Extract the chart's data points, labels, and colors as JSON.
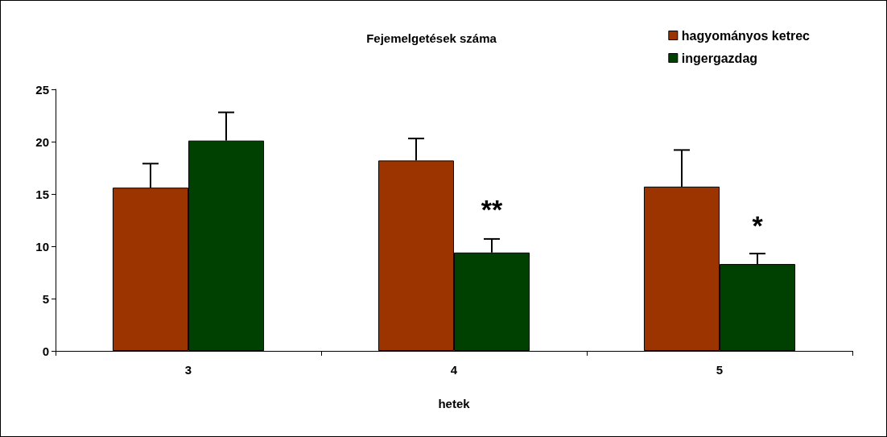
{
  "chart_data": {
    "type": "bar",
    "title": "Fejemelgetések száma",
    "xlabel": "hetek",
    "categories": [
      "3",
      "4",
      "5"
    ],
    "series": [
      {
        "name": "hagyományos ketrec",
        "color": "#9c3400",
        "values": [
          15.6,
          18.2,
          15.7
        ],
        "errors": [
          [
            15.6,
            17.9
          ],
          [
            18.2,
            20.3
          ],
          [
            15.7,
            19.2
          ]
        ]
      },
      {
        "name": "ingergazdag",
        "color": "#004000",
        "values": [
          20.1,
          9.4,
          8.3
        ],
        "errors": [
          [
            20.1,
            22.8
          ],
          [
            9.4,
            10.7
          ],
          [
            8.3,
            9.3
          ]
        ]
      }
    ],
    "ylim": [
      0,
      25
    ],
    "yticks": [
      0,
      5,
      10,
      15,
      20,
      25
    ],
    "grid": false,
    "legend": "top right",
    "annotations": [
      {
        "text": "**",
        "x": "4",
        "y": 12.2
      },
      {
        "text": "*",
        "x": "5",
        "y": 10.7
      }
    ]
  }
}
